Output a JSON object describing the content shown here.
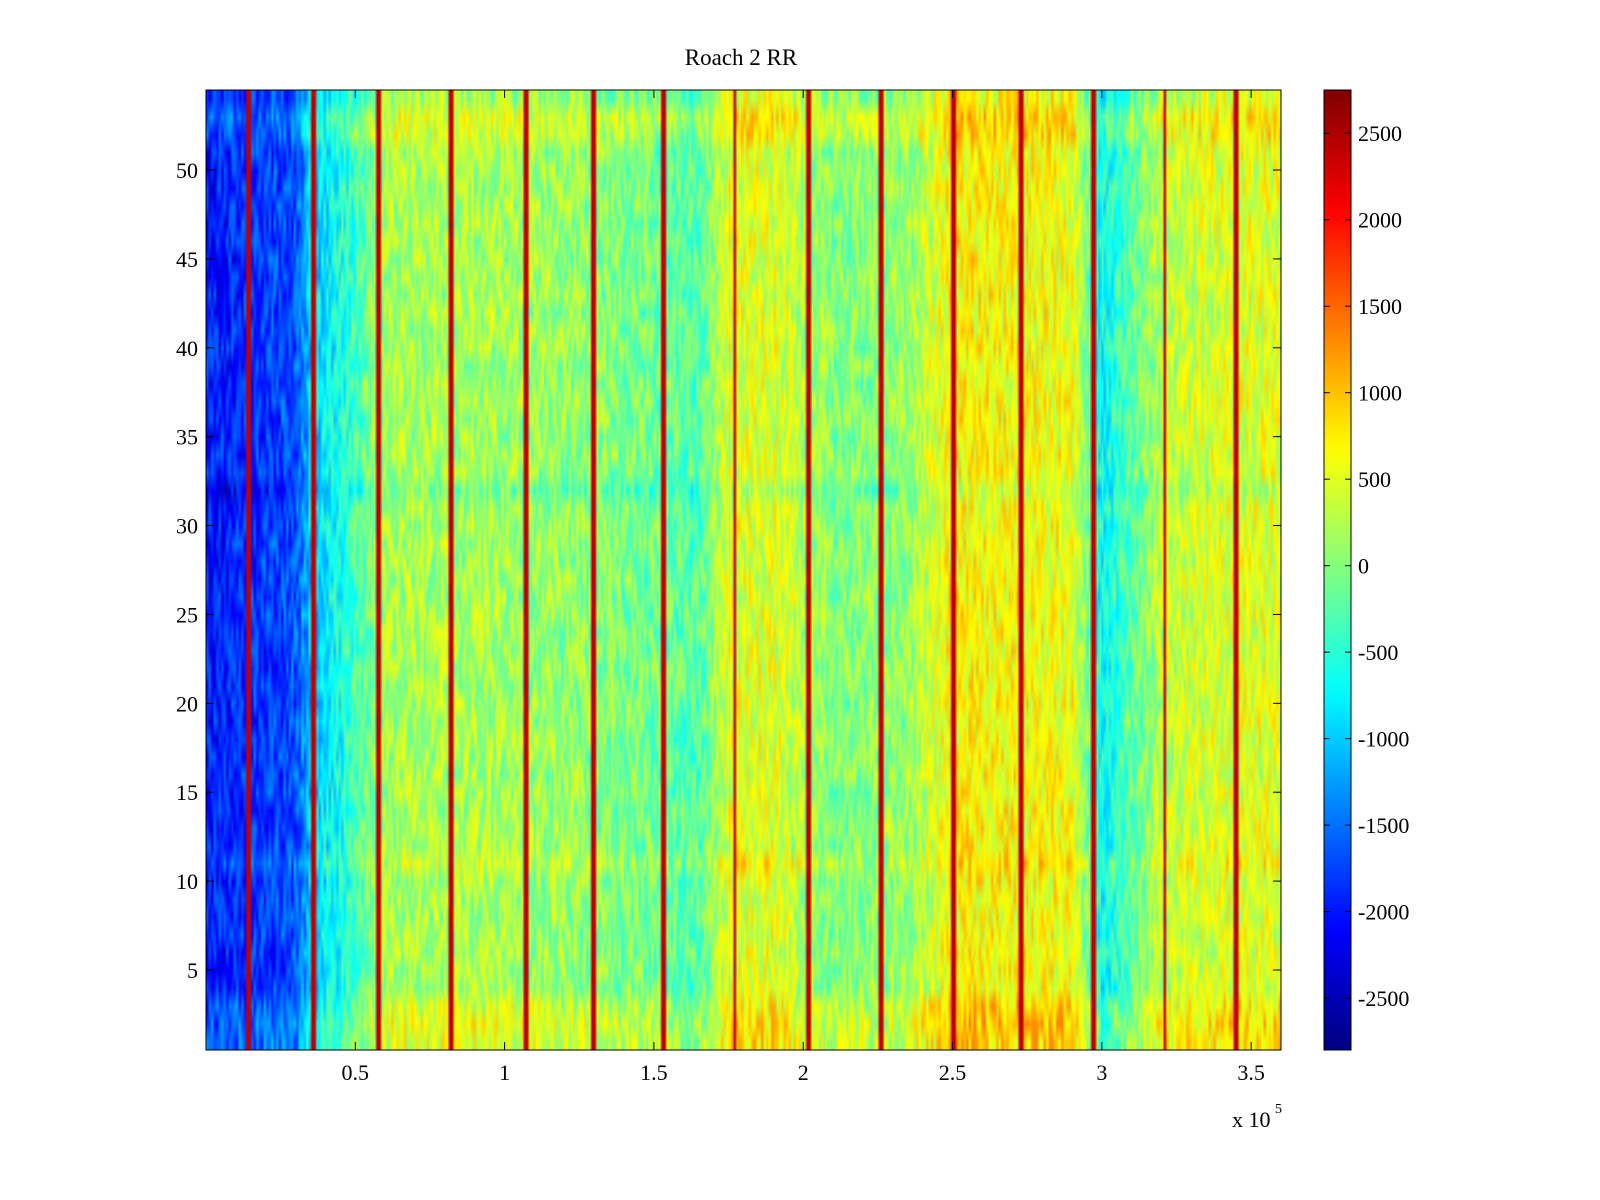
{
  "chart_data": {
    "type": "heatmap",
    "title": "Roach 2 RR",
    "xlabel": "",
    "ylabel": "",
    "x_multiplier_label": "x 10",
    "x_multiplier_exponent": "5",
    "xlim": [
      0,
      3.6
    ],
    "ylim": [
      0.5,
      54.5
    ],
    "x_ticks": [
      0.5,
      1,
      1.5,
      2,
      2.5,
      3,
      3.5
    ],
    "x_tick_labels": [
      "0.5",
      "1",
      "1.5",
      "2",
      "2.5",
      "3",
      "3.5"
    ],
    "y_ticks": [
      5,
      10,
      15,
      20,
      25,
      30,
      35,
      40,
      45,
      50
    ],
    "y_tick_labels": [
      "5",
      "10",
      "15",
      "20",
      "25",
      "30",
      "35",
      "40",
      "45",
      "50"
    ],
    "rows": 54,
    "grid": false,
    "colormap": "jet",
    "colorbar": {
      "range": [
        -2800,
        2750
      ],
      "ticks": [
        -2500,
        -2000,
        -1500,
        -1000,
        -500,
        0,
        500,
        1000,
        1500,
        2000,
        2500
      ],
      "tick_labels": [
        "-2500",
        "-2000",
        "-1500",
        "-1000",
        "-500",
        "0",
        "500",
        "1000",
        "1500",
        "2000",
        "2500"
      ],
      "placement": "right"
    },
    "column_profile": {
      "x": [
        0,
        0.1,
        0.2,
        0.3,
        0.35,
        0.45,
        0.6,
        0.9,
        1.2,
        1.5,
        1.65,
        1.75,
        1.9,
        2.1,
        2.35,
        2.5,
        2.7,
        2.9,
        3.0,
        3.1,
        3.2,
        3.3,
        3.45,
        3.6
      ],
      "values": [
        -2000,
        -1900,
        -1800,
        -1700,
        -1000,
        -600,
        200,
        200,
        100,
        -100,
        -300,
        500,
        500,
        0,
        100,
        700,
        650,
        600,
        -700,
        -200,
        300,
        400,
        500,
        500
      ]
    },
    "vertical_stripes_x": [
      0.14,
      0.36,
      0.58,
      0.82,
      1.07,
      1.3,
      1.53,
      1.77,
      2.02,
      2.26,
      2.5,
      2.73,
      2.97,
      3.21,
      3.45
    ],
    "stripe_value": 2400,
    "row_shifts": {
      "rows": [
        1,
        2,
        3,
        11,
        32,
        52,
        53
      ],
      "values": [
        300,
        350,
        250,
        200,
        -250,
        250,
        300
      ]
    }
  }
}
